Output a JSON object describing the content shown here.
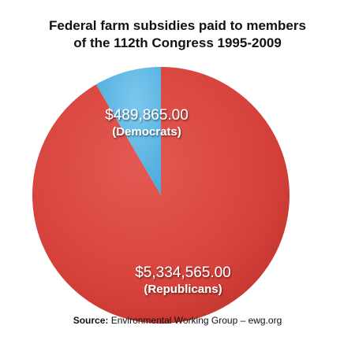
{
  "chart_data": {
    "type": "pie",
    "title": [
      "Federal farm subsidies paid to members",
      "of the 112th Congress 1995-2009"
    ],
    "slices": [
      {
        "label": "(Republicans)",
        "value": 5334565.0,
        "value_text": "$5,334,565.00",
        "color": "#d9453f"
      },
      {
        "label": "(Democrats)",
        "value": 489865.0,
        "value_text": "$489,865.00",
        "color": "#5bb6e4"
      }
    ]
  },
  "source": {
    "label": "Source:",
    "text": " Environmental Working Group – ewg.org"
  }
}
